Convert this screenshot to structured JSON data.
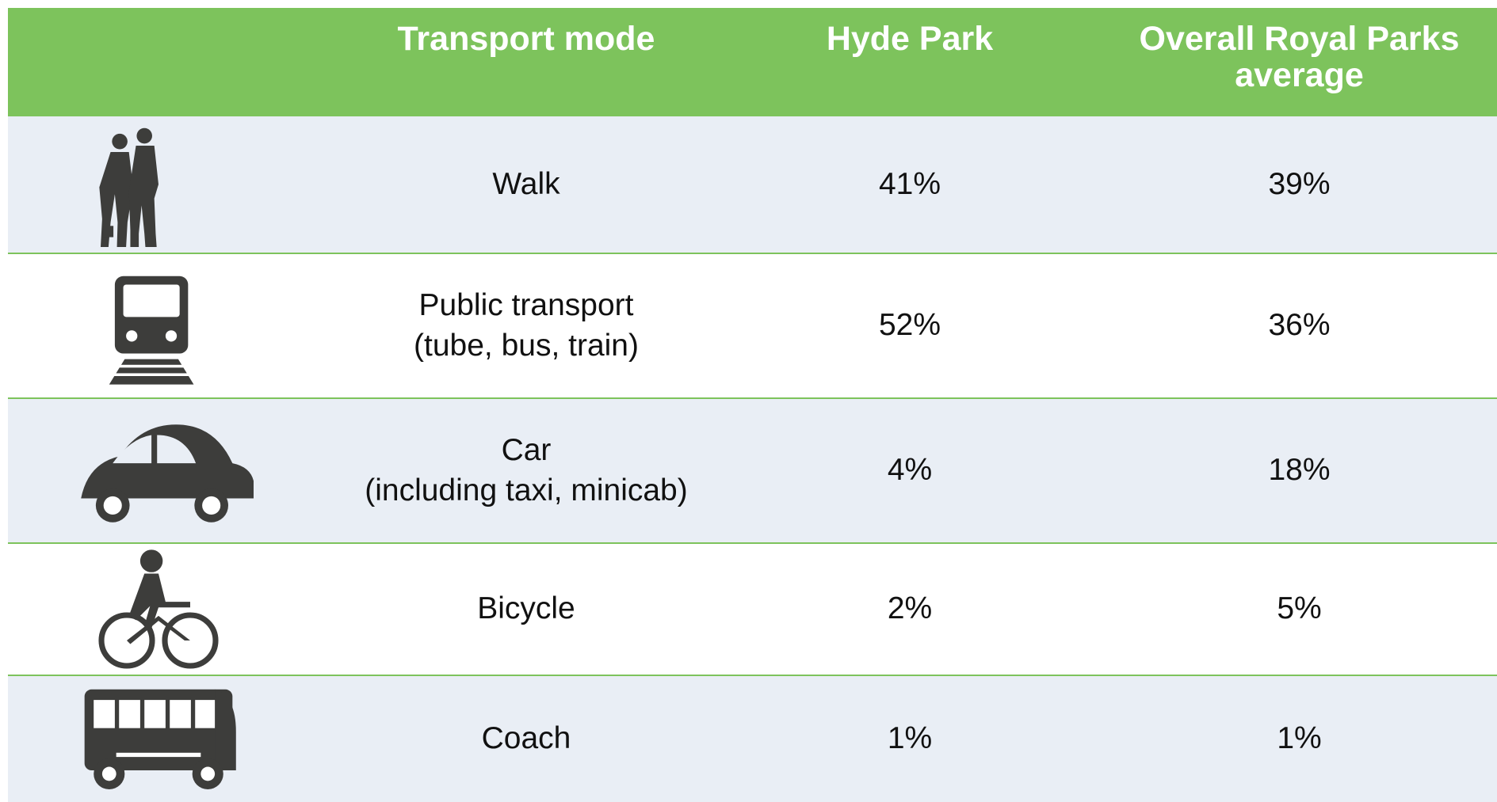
{
  "table": {
    "header": [
      "Transport mode",
      "Hyde Park",
      "Overall Royal Parks average"
    ],
    "rows": [
      {
        "mode": [
          "Walk"
        ],
        "hyde_park": "41%",
        "overall": "39%"
      },
      {
        "mode": [
          "Public transport",
          "(tube, bus, train)"
        ],
        "hyde_park": "52%",
        "overall": "36%"
      },
      {
        "mode": [
          "Car",
          "(including taxi, minicab)"
        ],
        "hyde_park": "4%",
        "overall": "18%"
      },
      {
        "mode": [
          "Bicycle"
        ],
        "hyde_park": "2%",
        "overall": "5%"
      },
      {
        "mode": [
          "Coach"
        ],
        "hyde_park": "1%",
        "overall": "1%"
      }
    ]
  }
}
